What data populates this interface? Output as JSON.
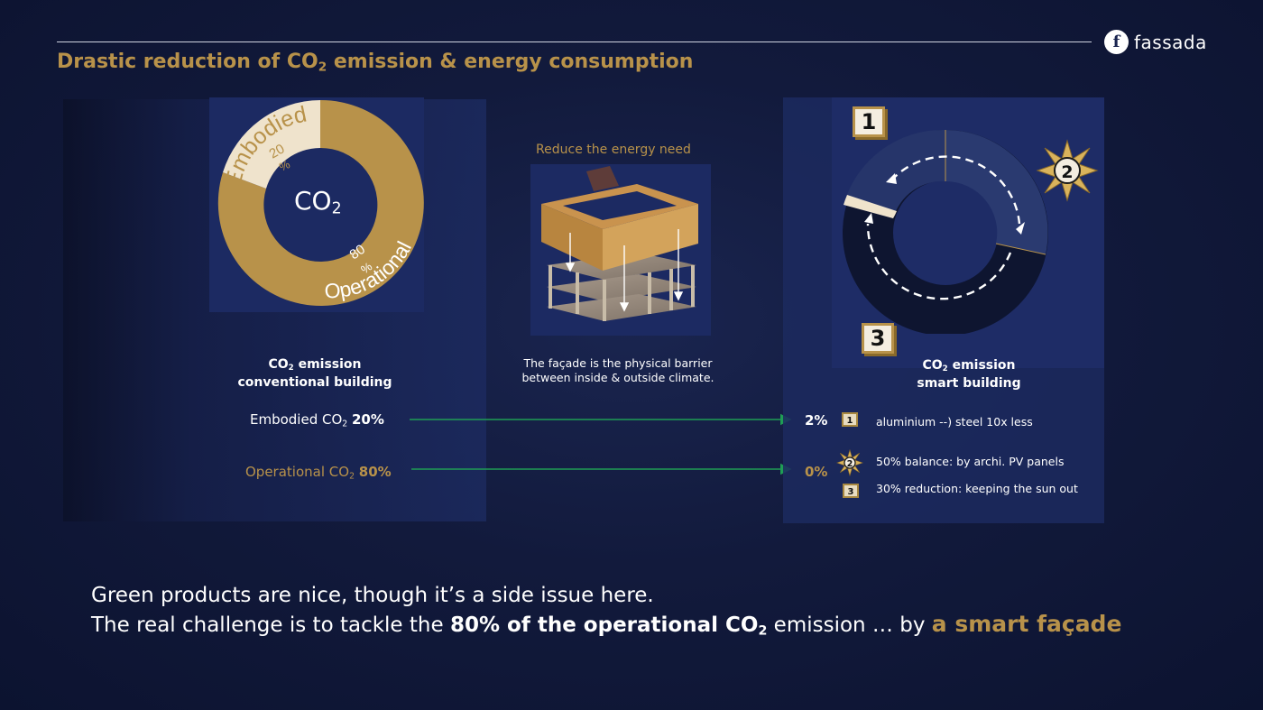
{
  "header": {
    "title_part1": "Drastic reduction of CO",
    "title_sub": "2",
    "title_part2": " emission & energy consumption",
    "logo_mark": "f",
    "logo_text": "fassada"
  },
  "colors": {
    "gold": "#b8924a",
    "cream": "#efe3cc",
    "navy": "#1c2a62",
    "arrow_green": "#1f9d55"
  },
  "left": {
    "donut": {
      "center_main": "CO",
      "center_sub": "2",
      "embodied_label": "Embodied",
      "embodied_value": "20",
      "embodied_unit": "%",
      "embodied_share": 20,
      "operational_label": "Operational",
      "operational_value": "80",
      "operational_unit": "%",
      "operational_share": 80
    },
    "heading_part1": "CO",
    "heading_sub": "2",
    "heading_part2": " emission",
    "heading_line2": "conventional building",
    "row1": {
      "label": "Embodied CO",
      "sub": "2",
      "value": "20%"
    },
    "row2": {
      "label": "Operational CO",
      "sub": "2",
      "value": "80%"
    }
  },
  "middle": {
    "caption": "Reduce the energy need",
    "desc_line1": "The façade is the physical barrier",
    "desc_line2": "between inside & outside climate."
  },
  "right": {
    "badge1": "1",
    "badge2": "2",
    "badge3": "3",
    "heading_part1": "CO",
    "heading_sub": "2",
    "heading_part2": " emission",
    "heading_line2": "smart building",
    "pct1": "2%",
    "pct2": "0%",
    "legend": [
      {
        "num": "1",
        "text": "aluminium --) steel 10x less"
      },
      {
        "num": "2",
        "text": "50% balance:   by archi. PV panels"
      },
      {
        "num": "3",
        "text": "30% reduction:  keeping the sun out"
      }
    ]
  },
  "bottom": {
    "line1": "Green products are nice, though it’s a side issue here.",
    "line2_a": "The real challenge is to tackle the ",
    "line2_b": "80% of the operational CO",
    "line2_sub": "2",
    "line2_c": " emission  … by ",
    "line2_d": "a smart façade"
  }
}
